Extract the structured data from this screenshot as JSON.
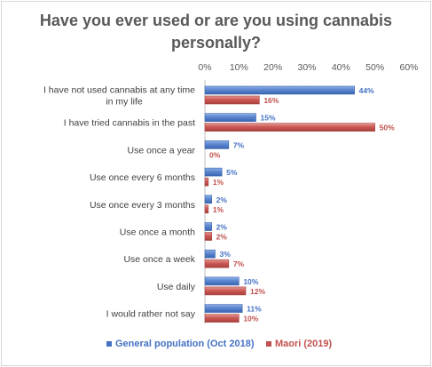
{
  "chart_data": {
    "type": "bar",
    "orientation": "horizontal",
    "title": "Have you ever used or are you using cannabis personally?",
    "categories": [
      "I have not used cannabis at any time in my life",
      "I have tried cannabis in the past",
      "Use once a year",
      "Use once every 6 months",
      "Use once every 3 months",
      "Use once a month",
      "Use once a week",
      "Use daily",
      "I would rather not say"
    ],
    "series": [
      {
        "name": "General population (Oct 2018)",
        "color": "#4472c4",
        "label_color": "#4472c4",
        "values": [
          44,
          15,
          7,
          5,
          2,
          2,
          3,
          10,
          11
        ],
        "labels": [
          "44%",
          "15%",
          "7%",
          "5%",
          "2%",
          "2%",
          "3%",
          "10%",
          "11%"
        ]
      },
      {
        "name": "Maori (2019)",
        "color": "#c0504d",
        "label_color": "#c0504d",
        "values": [
          16,
          50,
          0,
          1,
          1,
          2,
          7,
          12,
          10
        ],
        "labels": [
          "16%",
          "50%",
          "0%",
          "1%",
          "1%",
          "2%",
          "7%",
          "12%",
          "10%"
        ]
      }
    ],
    "xlim": [
      0,
      60
    ],
    "xticks": [
      "0%",
      "10%",
      "20%",
      "30%",
      "40%",
      "50%",
      "60%"
    ],
    "axis_position": "top",
    "grid": false,
    "legend_position": "bottom"
  }
}
